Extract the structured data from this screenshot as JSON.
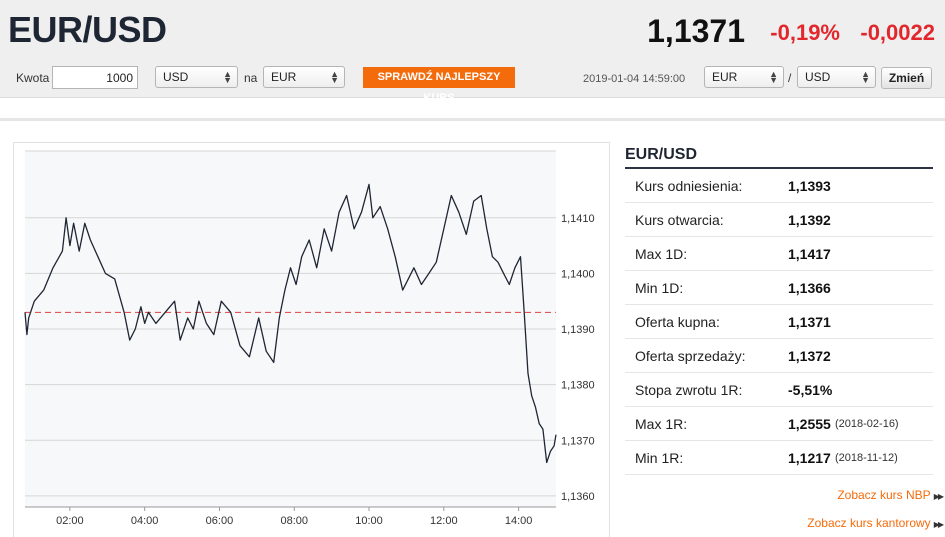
{
  "header": {
    "pair": "EUR/USD",
    "price": "1,1371",
    "change_pct": "-0,19%",
    "change_abs": "-0,0022"
  },
  "converter": {
    "amount_label": "Kwota",
    "amount_value": "1000",
    "from_currency": "USD",
    "to_label": "na",
    "to_currency": "EUR",
    "best_rate_button": "SPRAWDŹ NAJLEPSZY KURS",
    "timestamp": "2019-01-04 14:59:00",
    "pair_base": "EUR",
    "pair_separator": "/",
    "pair_quote": "USD",
    "swap_button": "Zmień"
  },
  "chart_data": {
    "type": "line",
    "title": "",
    "xlabel": "",
    "ylabel": "",
    "x_ticks": [
      "02:00",
      "04:00",
      "06:00",
      "08:00",
      "10:00",
      "12:00",
      "14:00"
    ],
    "y_ticks": [
      "1,1410",
      "1,1400",
      "1,1390",
      "1,1380",
      "1,1370",
      "1,1360"
    ],
    "xlim_hours": [
      0.8,
      15.0
    ],
    "ylim": [
      1.1358,
      1.1422
    ],
    "reference_line": 1.1393,
    "reference_line_color": "#e04040",
    "line_color": "#1f2633",
    "grid": true,
    "series": [
      {
        "x": [
          0.8,
          0.85,
          0.9,
          1.05,
          1.3,
          1.55,
          1.8,
          1.9,
          2.0,
          2.1,
          2.25,
          2.4,
          2.55,
          2.75,
          2.95,
          3.2,
          3.45,
          3.6,
          3.75,
          3.9,
          4.0,
          4.1,
          4.3,
          4.55,
          4.8,
          4.95,
          5.15,
          5.3,
          5.45,
          5.65,
          5.85,
          6.05,
          6.3,
          6.55,
          6.8,
          7.05,
          7.25,
          7.45,
          7.6,
          7.75,
          7.9,
          8.05,
          8.2,
          8.4,
          8.6,
          8.8,
          9.0,
          9.2,
          9.4,
          9.6,
          9.8,
          10.0,
          10.1,
          10.3,
          10.5,
          10.7,
          10.9,
          11.05,
          11.2,
          11.4,
          11.6,
          11.8,
          12.0,
          12.2,
          12.4,
          12.6,
          12.8,
          13.0,
          13.15,
          13.3,
          13.45,
          13.6,
          13.75,
          13.9,
          14.05,
          14.15,
          14.25,
          14.35,
          14.45,
          14.55,
          14.65,
          14.75,
          14.85,
          14.95,
          15.0
        ],
        "values": [
          1.1393,
          1.1389,
          1.1392,
          1.1395,
          1.1397,
          1.1401,
          1.1404,
          1.141,
          1.1405,
          1.1409,
          1.1404,
          1.1409,
          1.1406,
          1.1403,
          1.14,
          1.1399,
          1.1393,
          1.1388,
          1.139,
          1.1394,
          1.1391,
          1.1393,
          1.1391,
          1.1393,
          1.1395,
          1.1388,
          1.1392,
          1.139,
          1.1395,
          1.1391,
          1.1389,
          1.1395,
          1.1393,
          1.1387,
          1.1385,
          1.1392,
          1.1386,
          1.1384,
          1.1392,
          1.1397,
          1.1401,
          1.1398,
          1.1403,
          1.1406,
          1.1401,
          1.1408,
          1.1404,
          1.1411,
          1.1414,
          1.1408,
          1.1411,
          1.1416,
          1.141,
          1.1412,
          1.1408,
          1.1403,
          1.1397,
          1.1399,
          1.1401,
          1.1398,
          1.14,
          1.1402,
          1.1408,
          1.1414,
          1.1411,
          1.1407,
          1.1413,
          1.1414,
          1.1408,
          1.1403,
          1.1402,
          1.14,
          1.1398,
          1.1401,
          1.1403,
          1.1393,
          1.1382,
          1.1378,
          1.1376,
          1.1373,
          1.1372,
          1.1366,
          1.1368,
          1.1369,
          1.1371
        ]
      }
    ]
  },
  "stats": {
    "title": "EUR/USD",
    "rows": [
      {
        "label": "Kurs odniesienia:",
        "value": "1,1393",
        "date": ""
      },
      {
        "label": "Kurs otwarcia:",
        "value": "1,1392",
        "date": ""
      },
      {
        "label": "Max 1D:",
        "value": "1,1417",
        "date": ""
      },
      {
        "label": "Min 1D:",
        "value": "1,1366",
        "date": ""
      },
      {
        "label": "Oferta kupna:",
        "value": "1,1371",
        "date": ""
      },
      {
        "label": "Oferta sprzedaży:",
        "value": "1,1372",
        "date": ""
      },
      {
        "label": "Stopa zwrotu 1R:",
        "value": "-5,51%",
        "date": ""
      },
      {
        "label": "Max 1R:",
        "value": "1,2555",
        "date": "(2018-02-16)"
      },
      {
        "label": "Min 1R:",
        "value": "1,1217",
        "date": "(2018-11-12)"
      }
    ]
  },
  "links": {
    "nbp": "Zobacz kurs NBP",
    "kantor": "Zobacz kurs kantorowy"
  },
  "icons": {
    "select_arrow": "up-down-arrows-icon",
    "link_arrow": "double-right-arrow-icon"
  }
}
